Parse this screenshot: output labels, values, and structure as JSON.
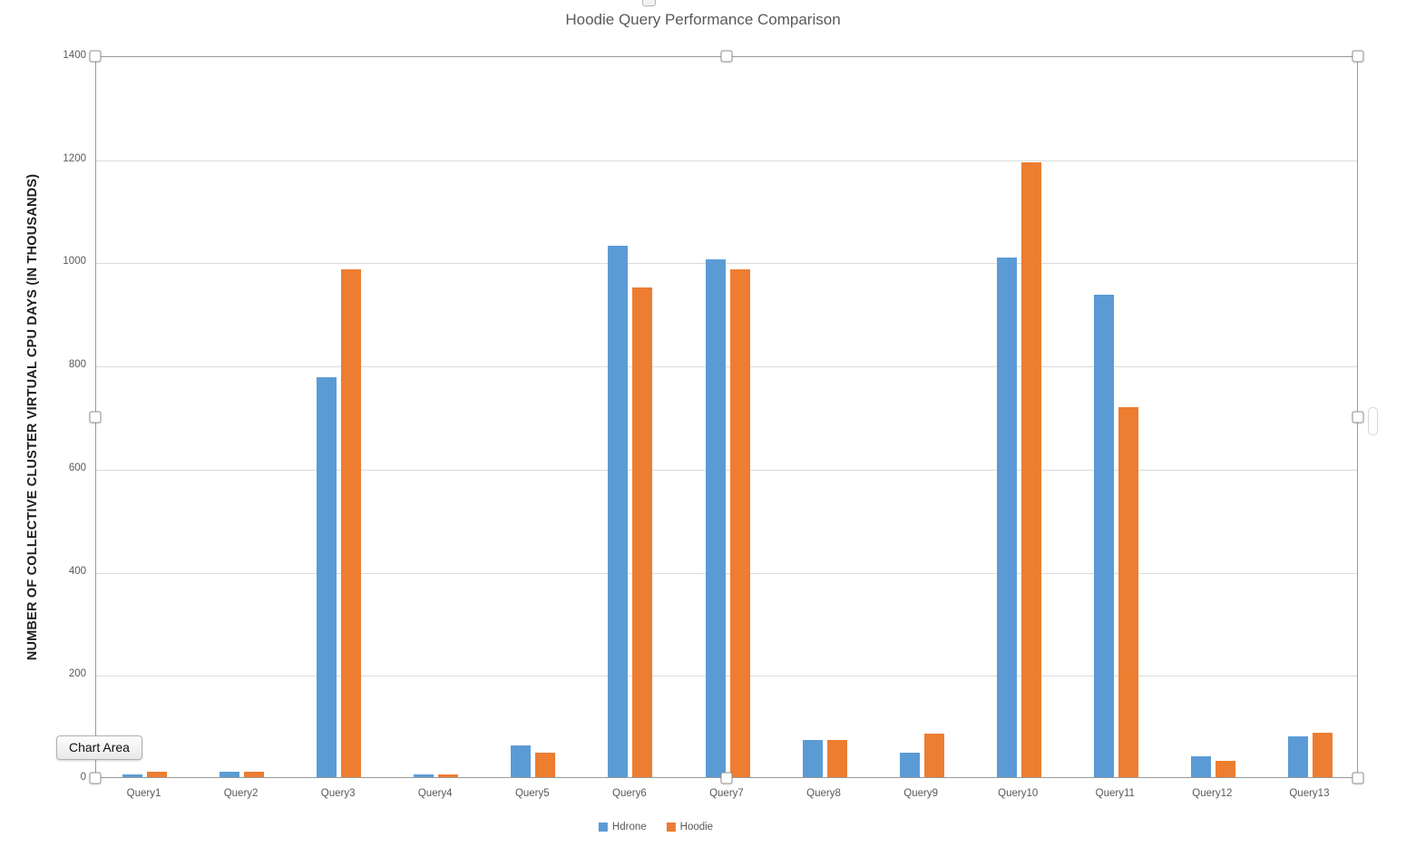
{
  "chart_data": {
    "type": "bar",
    "title": "Hoodie Query Performance Comparison",
    "ylabel": "NUMBER OF COLLECTIVE CLUSTER VIRTUAL CPU DAYS (IN THOUSANDS)",
    "xlabel": "",
    "categories": [
      "Query1",
      "Query2",
      "Query3",
      "Query4",
      "Query5",
      "Query6",
      "Query7",
      "Query8",
      "Query9",
      "Query10",
      "Query11",
      "Query12",
      "Query13"
    ],
    "series": [
      {
        "name": "Hdrone",
        "color": "#5B9BD5",
        "values": [
          5,
          10,
          775,
          5,
          61,
          1030,
          1005,
          72,
          47,
          1008,
          935,
          40,
          79
        ]
      },
      {
        "name": "Hoodie",
        "color": "#ED7D31",
        "values": [
          10,
          10,
          985,
          5,
          48,
          950,
          985,
          72,
          85,
          1193,
          718,
          32,
          87
        ]
      }
    ],
    "ylim": [
      0,
      1400
    ],
    "yticks": [
      0,
      200,
      400,
      600,
      800,
      1000,
      1200,
      1400
    ],
    "grid": true,
    "legend_position": "bottom"
  },
  "overlay": {
    "tooltip": "Chart Area"
  },
  "colors": {
    "series_hdrone": "#5B9BD5",
    "series_hoodie": "#ED7D31",
    "gridline": "#dcdcdc",
    "frame": "#9b9b9b",
    "label_text": "#595959"
  }
}
